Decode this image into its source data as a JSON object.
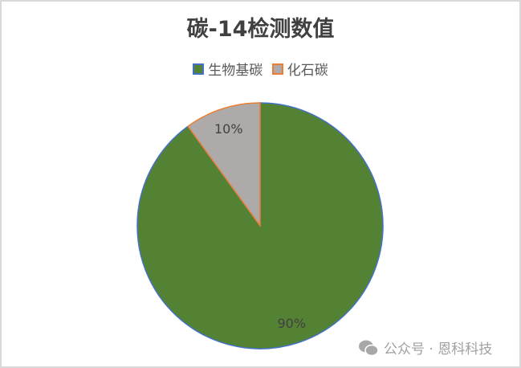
{
  "chart_data": {
    "type": "pie",
    "title": "碳-14检测数值",
    "legend_position": "top",
    "categories": [
      "生物基碳",
      "化石碳"
    ],
    "values": [
      90,
      10
    ],
    "labels": [
      "90%",
      "10%"
    ],
    "colors": [
      "#548235",
      "#AEAAAA"
    ],
    "edge_colors": [
      "#4472C4",
      "#ED7D31"
    ]
  },
  "watermark": {
    "icon": "wechat-icon",
    "text": "公众号 · 恩科科技"
  }
}
